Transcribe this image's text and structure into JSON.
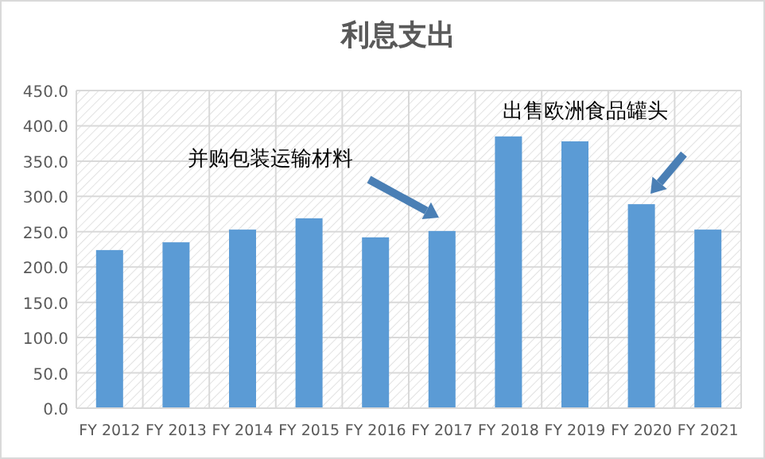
{
  "chart_data": {
    "type": "bar",
    "title": "利息支出",
    "categories": [
      "FY 2012",
      "FY 2013",
      "FY 2014",
      "FY 2015",
      "FY 2016",
      "FY 2017",
      "FY 2018",
      "FY 2019",
      "FY 2020",
      "FY 2021"
    ],
    "values": [
      224,
      235,
      253,
      269,
      242,
      251,
      385,
      378,
      289,
      253
    ],
    "color": "#5b9bd5",
    "ylim": [
      0,
      450
    ],
    "yticks": [
      {
        "value": 0,
        "label": "0.0"
      },
      {
        "value": 50,
        "label": "50.0"
      },
      {
        "value": 100,
        "label": "100.0"
      },
      {
        "value": 150,
        "label": "150.0"
      },
      {
        "value": 200,
        "label": "200.0"
      },
      {
        "value": 250,
        "label": "250.0"
      },
      {
        "value": 300,
        "label": "300.0"
      },
      {
        "value": 350,
        "label": "350.0"
      },
      {
        "value": 400,
        "label": "400.0"
      },
      {
        "value": 450,
        "label": "450.0"
      }
    ],
    "grid": true,
    "annotations": [
      "并购包装运输材料",
      "出售欧洲食品罐头"
    ]
  }
}
